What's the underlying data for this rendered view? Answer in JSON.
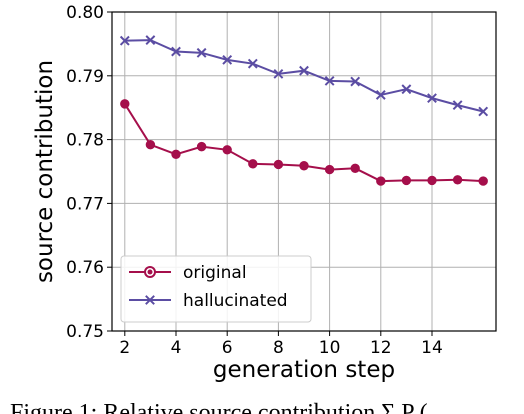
{
  "chart_data": {
    "type": "line",
    "title": "",
    "xlabel": "generation step",
    "ylabel": "source contribution",
    "xlim": [
      1.5,
      16.5
    ],
    "ylim": [
      0.75,
      0.8
    ],
    "x_ticks": [
      2,
      4,
      6,
      8,
      10,
      12,
      14
    ],
    "x_tick_labels": [
      "2",
      "4",
      "6",
      "8",
      "10",
      "12",
      "14"
    ],
    "y_ticks": [
      0.75,
      0.76,
      0.77,
      0.78,
      0.79,
      0.8
    ],
    "y_tick_labels": [
      "0.75",
      "0.76",
      "0.77",
      "0.78",
      "0.79",
      "0.80"
    ],
    "grid": true,
    "legend_position": "bottom-left",
    "x": [
      2,
      3,
      4,
      5,
      6,
      7,
      8,
      9,
      10,
      11,
      12,
      13,
      14,
      15,
      16
    ],
    "series": [
      {
        "name": "original",
        "color": "#a50f4b",
        "marker": "circle",
        "values": [
          0.7856,
          0.7792,
          0.7777,
          0.7789,
          0.7784,
          0.7762,
          0.7761,
          0.7759,
          0.7753,
          0.7755,
          0.7735,
          0.7736,
          0.7736,
          0.7737,
          0.7735
        ]
      },
      {
        "name": "hallucinated",
        "color": "#5b4da3",
        "marker": "x",
        "values": [
          0.7955,
          0.7956,
          0.7938,
          0.7936,
          0.7925,
          0.7919,
          0.7903,
          0.7908,
          0.7892,
          0.7891,
          0.787,
          0.7879,
          0.7865,
          0.7854,
          0.7844
        ]
      }
    ]
  },
  "caption": {
    "text": "Figure 1:  Relative source contribution  Σ P ("
  }
}
